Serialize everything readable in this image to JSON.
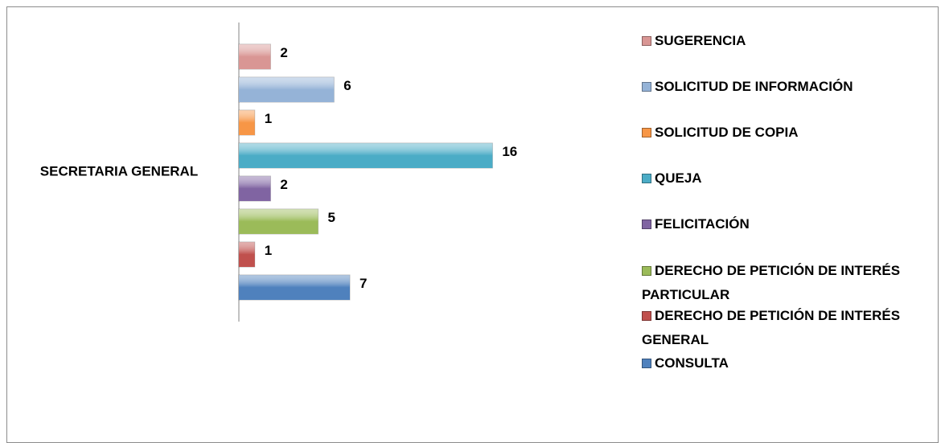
{
  "chart_data": {
    "type": "bar",
    "orientation": "horizontal",
    "categories": [
      "SECRETARIA GENERAL"
    ],
    "xlim": [
      0,
      24
    ],
    "series": [
      {
        "name": "SUGERENCIA",
        "color": "#d99694",
        "values": [
          2
        ]
      },
      {
        "name": "SOLICITUD DE INFORMACIÓN",
        "color": "#95b3d7",
        "values": [
          6
        ]
      },
      {
        "name": "SOLICITUD DE COPIA",
        "color": "#f79646",
        "values": [
          1
        ]
      },
      {
        "name": "QUEJA",
        "color": "#4bacc6",
        "values": [
          16
        ]
      },
      {
        "name": "FELICITACIÓN",
        "color": "#8064a2",
        "values": [
          2
        ]
      },
      {
        "name": "DERECHO DE PETICIÓN DE INTERÉS PARTICULAR",
        "color": "#9bbb59",
        "values": [
          5
        ]
      },
      {
        "name": "DERECHO DE PETICIÓN DE INTERÉS GENERAL",
        "color": "#c0504d",
        "values": [
          1
        ]
      },
      {
        "name": "CONSULTA",
        "color": "#4f81bd",
        "values": [
          7
        ]
      }
    ],
    "legend": "right"
  }
}
